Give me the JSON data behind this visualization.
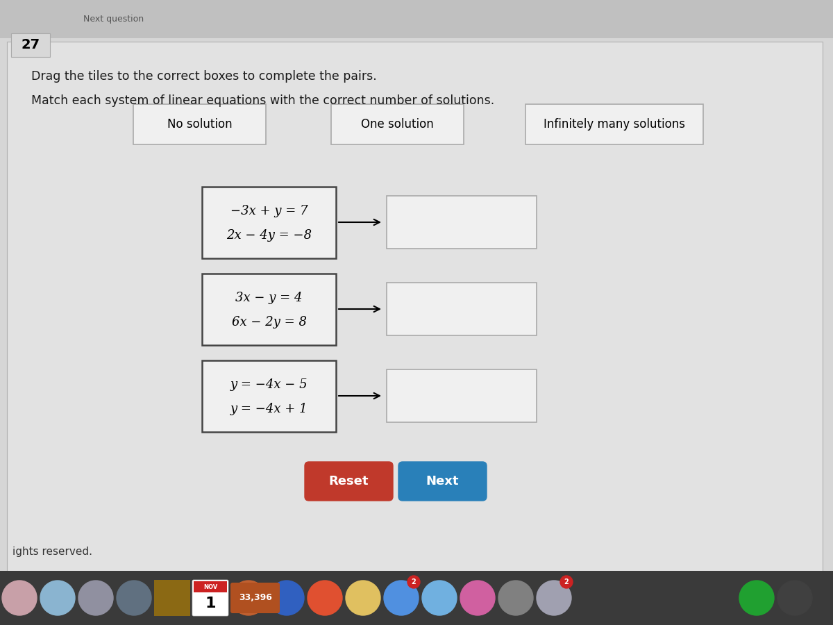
{
  "bg_top": "#c8c8c8",
  "bg_main": "#d6d6d6",
  "content_bg": "#d8d8d8",
  "question_number": "27",
  "instruction1": "Drag the tiles to the correct boxes to complete the pairs.",
  "instruction2": "Match each system of linear equations with the correct number of solutions.",
  "solution_labels": [
    "No solution",
    "One solution",
    "Infinitely many solutions"
  ],
  "equations": [
    [
      "−3x + y = 7",
      "2x − 4y = −8"
    ],
    [
      "3x − y = 4",
      "6x − 2y = 8"
    ],
    [
      "y = −4x − 5",
      "y = −4x + 1"
    ]
  ],
  "reset_btn_color": "#c0392b",
  "next_btn_color": "#2980b9",
  "reset_label": "Reset",
  "next_label": "Next",
  "footer_text": "ights reserved.",
  "taskbar_color": "#3a3a3a",
  "nov_text": "NOV",
  "date_text": "1",
  "counter_text": "33,396",
  "equation_box_border": "#444444",
  "equation_box_bg": "#f0f0f0",
  "answer_box_bg": "#f0f0f0",
  "answer_box_border": "#aaaaaa",
  "solution_box_border": "#aaaaaa",
  "solution_box_bg": "#f0f0f0",
  "header_bar_bg": "#e0e0e0",
  "header_bar_border": "#bbbbbb"
}
